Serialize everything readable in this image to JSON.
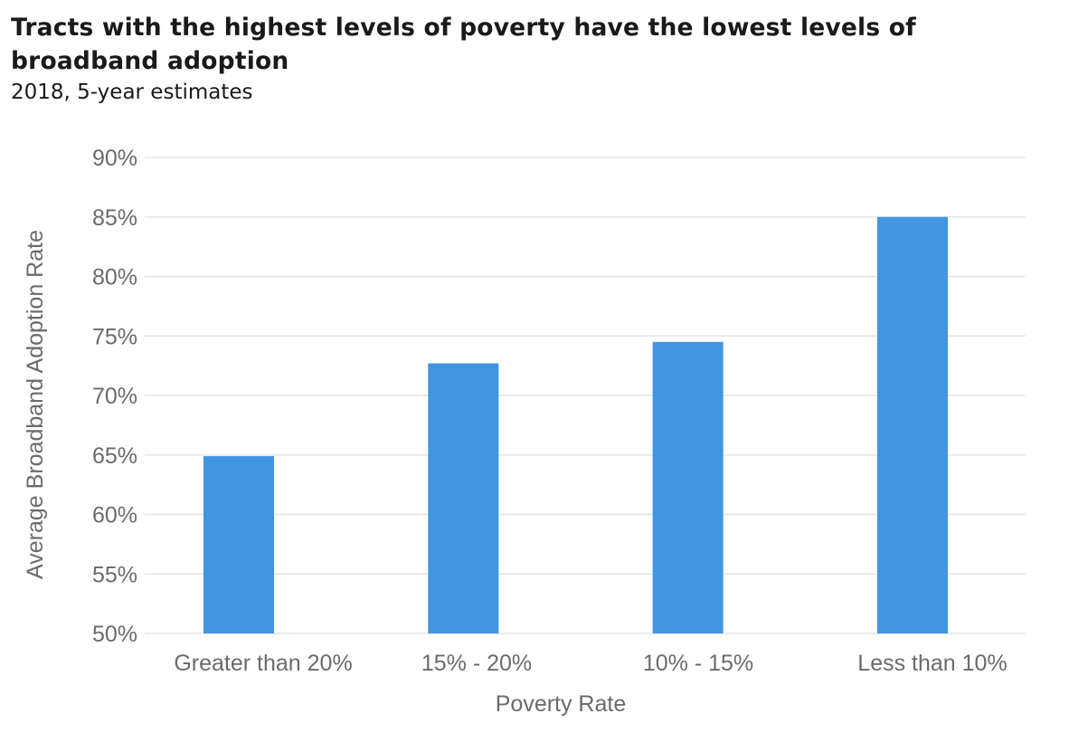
{
  "chart_data": {
    "type": "bar",
    "title": "Tracts with the highest levels of poverty have the lowest levels of broadband adoption",
    "subtitle": "2018, 5-year estimates",
    "xlabel": "Poverty Rate",
    "ylabel": "Average Broadband Adoption Rate",
    "categories": [
      "Greater than 20%",
      "15% - 20%",
      "10% - 15%",
      "Less than 10%"
    ],
    "values": [
      64.9,
      72.7,
      74.5,
      85.0
    ],
    "ylim": [
      50,
      90
    ],
    "yticks": [
      50,
      55,
      60,
      65,
      70,
      75,
      80,
      85,
      90
    ],
    "ytick_labels": [
      "50%",
      "55%",
      "60%",
      "65%",
      "70%",
      "75%",
      "80%",
      "85%",
      "90%"
    ],
    "bar_color": "#4296e0",
    "grid": true,
    "gridline_color": "#e3e6ea"
  }
}
